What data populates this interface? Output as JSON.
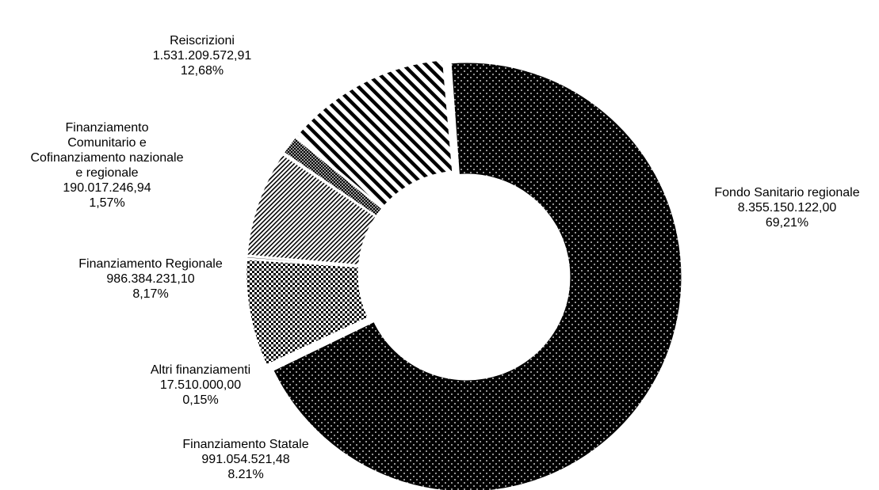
{
  "chart_data": {
    "type": "pie",
    "variant": "donut",
    "slices": [
      {
        "label": "Fondo Sanitario regionale",
        "label_lines": [
          "Fondo Sanitario regionale"
        ],
        "value": 8355150122.0,
        "value_text": "8.355.150.122,00",
        "percent": 69.21,
        "percent_text": "69,21%",
        "pattern": "dots",
        "exploded": true
      },
      {
        "label": "Finanziamento Statale",
        "label_lines": [
          "Finanziamento Statale"
        ],
        "value": 991054521.48,
        "value_text": "991.054.521,48",
        "percent": 8.21,
        "percent_text": "8.21%",
        "pattern": "checker"
      },
      {
        "label": "Altri finanziamenti",
        "label_lines": [
          "Altri finanziamenti"
        ],
        "value": 17510000.0,
        "value_text": "17.510.000,00",
        "percent": 0.15,
        "percent_text": "0,15%",
        "pattern": "solid"
      },
      {
        "label": "Finanziamento Regionale",
        "label_lines": [
          "Finanziamento Regionale"
        ],
        "value": 986384231.1,
        "value_text": "986.384.231,10",
        "percent": 8.17,
        "percent_text": "8,17%",
        "pattern": "diag-fine"
      },
      {
        "label": "Finanziamento Comunitario e Cofinanziamento nazionale e regionale",
        "label_lines": [
          "Finanziamento",
          "Comunitario e",
          "Cofinanziamento nazionale",
          "e regionale"
        ],
        "value": 190017246.94,
        "value_text": "190.017.246,94",
        "percent": 1.57,
        "percent_text": "1,57%",
        "pattern": "crosshatch"
      },
      {
        "label": "Reiscrizioni",
        "label_lines": [
          "Reiscrizioni"
        ],
        "value": 1531209572.91,
        "value_text": "1.531.209.572,91",
        "percent": 12.68,
        "percent_text": "12,68%",
        "pattern": "diag-bold"
      }
    ],
    "colors": {
      "ink": "#000000",
      "background": "#ffffff"
    }
  }
}
